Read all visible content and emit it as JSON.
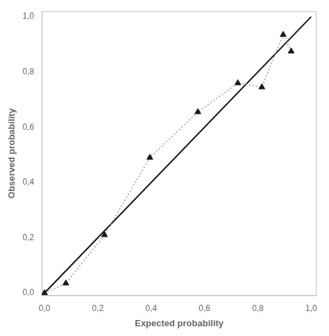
{
  "chart_data": {
    "type": "scatter",
    "xlabel": "Expected probability",
    "ylabel": "Observed probability",
    "series": [
      {
        "type": "line",
        "color": "#111111",
        "line_style": "solid",
        "x": [
          0.0,
          1.0
        ],
        "values": [
          0.0,
          1.0
        ]
      },
      {
        "type": "line",
        "color": "#999999",
        "line_style": "dotted",
        "x": [
          0.0,
          0.08,
          0.225,
          0.395,
          0.575,
          0.725,
          0.815,
          0.895,
          0.925
        ],
        "values": [
          0.0,
          0.035,
          0.21,
          0.49,
          0.655,
          0.76,
          0.745,
          0.935,
          0.875
        ]
      },
      {
        "type": "scatter",
        "color": "#1a1a1a",
        "marker": "triangle",
        "x": [
          0.0,
          0.08,
          0.225,
          0.395,
          0.575,
          0.725,
          0.815,
          0.895,
          0.925
        ],
        "values": [
          0.0,
          0.035,
          0.21,
          0.49,
          0.655,
          0.76,
          0.745,
          0.935,
          0.875
        ]
      }
    ],
    "xlim": [
      -0.01,
      1.02
    ],
    "ylim": [
      -0.01,
      1.02
    ],
    "xticks": [
      {
        "value": 0.0,
        "label": "0,0"
      },
      {
        "value": 0.2,
        "label": "0,2"
      },
      {
        "value": 0.4,
        "label": "0,4"
      },
      {
        "value": 0.6,
        "label": "0,6"
      },
      {
        "value": 0.8,
        "label": "0,8"
      },
      {
        "value": 1.0,
        "label": "1,0"
      }
    ],
    "yticks": [
      {
        "value": 0.0,
        "label": "0,0"
      },
      {
        "value": 0.2,
        "label": "0,2"
      },
      {
        "value": 0.4,
        "label": "0,4"
      },
      {
        "value": 0.6,
        "label": "0,6"
      },
      {
        "value": 0.8,
        "label": "0,8"
      },
      {
        "value": 1.0,
        "label": "1,0"
      }
    ],
    "grid": false
  }
}
